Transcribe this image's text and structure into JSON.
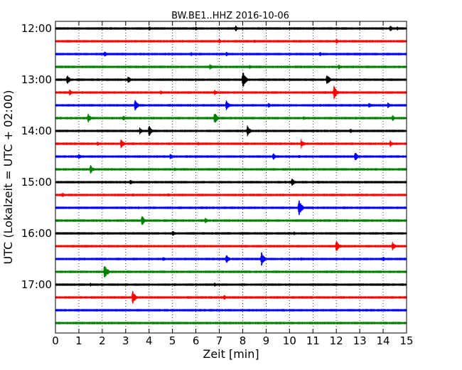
{
  "chart_data": {
    "type": "line",
    "title": "BW.BE1..HHZ 2016-10-06",
    "xlabel": "Zeit  [min]",
    "ylabel": "UTC (Lokalzeit = UTC + 02:00)",
    "xlim": [
      0,
      15
    ],
    "x_ticks": [
      "0",
      "1",
      "2",
      "3",
      "4",
      "5",
      "6",
      "7",
      "8",
      "9",
      "10",
      "11",
      "12",
      "13",
      "14",
      "15"
    ],
    "grid": "vertical dotted",
    "y_tick_labels": [
      {
        "row": 0,
        "label": "12:00"
      },
      {
        "row": 4,
        "label": "13:00"
      },
      {
        "row": 8,
        "label": "14:00"
      },
      {
        "row": 12,
        "label": "15:00"
      },
      {
        "row": 16,
        "label": "16:00"
      },
      {
        "row": 20,
        "label": "17:00"
      }
    ],
    "colors": [
      "#000000",
      "#ff0000",
      "#0000ff",
      "#008000"
    ],
    "traces": [
      {
        "start": "12:00",
        "events": [
          {
            "min": 4.0,
            "amp": 0.25
          },
          {
            "min": 6.0,
            "amp": 0.2
          },
          {
            "min": 7.7,
            "amp": 0.3
          },
          {
            "min": 14.3,
            "amp": 0.35
          },
          {
            "min": 14.6,
            "amp": 0.25
          }
        ]
      },
      {
        "start": "12:15",
        "events": [
          {
            "min": 7.0,
            "amp": 0.25
          },
          {
            "min": 8.5,
            "amp": 0.2
          },
          {
            "min": 12.0,
            "amp": 0.25
          }
        ]
      },
      {
        "start": "12:30",
        "events": [
          {
            "min": 2.1,
            "amp": 0.3
          },
          {
            "min": 5.8,
            "amp": 0.2
          },
          {
            "min": 7.3,
            "amp": 0.25
          },
          {
            "min": 11.3,
            "amp": 0.25
          }
        ]
      },
      {
        "start": "12:45",
        "events": [
          {
            "min": 6.6,
            "amp": 0.3
          },
          {
            "min": 8.3,
            "amp": 0.25
          },
          {
            "min": 12.1,
            "amp": 0.25
          }
        ]
      },
      {
        "start": "13:00",
        "events": [
          {
            "min": 0.5,
            "amp": 0.5
          },
          {
            "min": 3.1,
            "amp": 0.4
          },
          {
            "min": 8.0,
            "amp": 1.0
          },
          {
            "min": 11.6,
            "amp": 0.6
          }
        ]
      },
      {
        "start": "13:15",
        "events": [
          {
            "min": 0.6,
            "amp": 0.35
          },
          {
            "min": 4.5,
            "amp": 0.25
          },
          {
            "min": 6.8,
            "amp": 0.3
          },
          {
            "min": 11.9,
            "amp": 0.75
          }
        ]
      },
      {
        "start": "13:30",
        "events": [
          {
            "min": 3.4,
            "amp": 0.6
          },
          {
            "min": 7.3,
            "amp": 0.6
          },
          {
            "min": 9.1,
            "amp": 0.25
          },
          {
            "min": 13.4,
            "amp": 0.3
          },
          {
            "min": 14.2,
            "amp": 0.3
          }
        ]
      },
      {
        "start": "13:45",
        "events": [
          {
            "min": 1.4,
            "amp": 0.45
          },
          {
            "min": 2.9,
            "amp": 0.3
          },
          {
            "min": 6.8,
            "amp": 0.65
          },
          {
            "min": 10.6,
            "amp": 0.25
          },
          {
            "min": 14.4,
            "amp": 0.3
          }
        ]
      },
      {
        "start": "14:00",
        "events": [
          {
            "min": 3.6,
            "amp": 0.35
          },
          {
            "min": 4.0,
            "amp": 0.6
          },
          {
            "min": 8.2,
            "amp": 0.55
          },
          {
            "min": 12.6,
            "amp": 0.25
          }
        ]
      },
      {
        "start": "14:15",
        "events": [
          {
            "min": 1.8,
            "amp": 0.25
          },
          {
            "min": 2.8,
            "amp": 0.55
          },
          {
            "min": 6.1,
            "amp": 0.2
          },
          {
            "min": 10.5,
            "amp": 0.5
          },
          {
            "min": 14.3,
            "amp": 0.35
          }
        ]
      },
      {
        "start": "14:30",
        "events": [
          {
            "min": 1.0,
            "amp": 0.3
          },
          {
            "min": 4.9,
            "amp": 0.3
          },
          {
            "min": 9.3,
            "amp": 0.35
          },
          {
            "min": 10.4,
            "amp": 0.2
          },
          {
            "min": 12.8,
            "amp": 0.55
          }
        ]
      },
      {
        "start": "14:45",
        "events": [
          {
            "min": 1.5,
            "amp": 0.45
          },
          {
            "min": 5.1,
            "amp": 0.2
          },
          {
            "min": 12.0,
            "amp": 0.2
          }
        ]
      },
      {
        "start": "15:00",
        "events": [
          {
            "min": 3.2,
            "amp": 0.3
          },
          {
            "min": 10.1,
            "amp": 0.5
          },
          {
            "min": 11.2,
            "amp": 0.2
          }
        ]
      },
      {
        "start": "15:15",
        "events": [
          {
            "min": 0.3,
            "amp": 0.25
          },
          {
            "min": 3.3,
            "amp": 0.2
          },
          {
            "min": 4.8,
            "amp": 0.2
          }
        ]
      },
      {
        "start": "15:30",
        "events": [
          {
            "min": 7.5,
            "amp": 0.2
          },
          {
            "min": 10.4,
            "amp": 1.0
          }
        ]
      },
      {
        "start": "15:45",
        "events": [
          {
            "min": 3.7,
            "amp": 0.55
          },
          {
            "min": 6.4,
            "amp": 0.3
          }
        ]
      },
      {
        "start": "16:00",
        "events": [
          {
            "min": 5.0,
            "amp": 0.3
          },
          {
            "min": 10.2,
            "amp": 0.2
          }
        ]
      },
      {
        "start": "16:15",
        "events": [
          {
            "min": 12.0,
            "amp": 0.65
          },
          {
            "min": 14.4,
            "amp": 0.45
          }
        ]
      },
      {
        "start": "16:30",
        "events": [
          {
            "min": 4.6,
            "amp": 0.25
          },
          {
            "min": 7.3,
            "amp": 0.5
          },
          {
            "min": 8.8,
            "amp": 0.75
          },
          {
            "min": 10.5,
            "amp": 0.2
          },
          {
            "min": 14.0,
            "amp": 0.25
          }
        ]
      },
      {
        "start": "16:45",
        "events": [
          {
            "min": 2.1,
            "amp": 0.85
          },
          {
            "min": 13.0,
            "amp": 0.2
          }
        ]
      },
      {
        "start": "17:00",
        "events": [
          {
            "min": 1.5,
            "amp": 0.2
          },
          {
            "min": 6.8,
            "amp": 0.2
          }
        ]
      },
      {
        "start": "17:15",
        "events": [
          {
            "min": 3.3,
            "amp": 0.7
          },
          {
            "min": 7.2,
            "amp": 0.3
          }
        ]
      },
      {
        "start": "17:30",
        "events": []
      },
      {
        "start": "17:45",
        "events": []
      }
    ]
  }
}
